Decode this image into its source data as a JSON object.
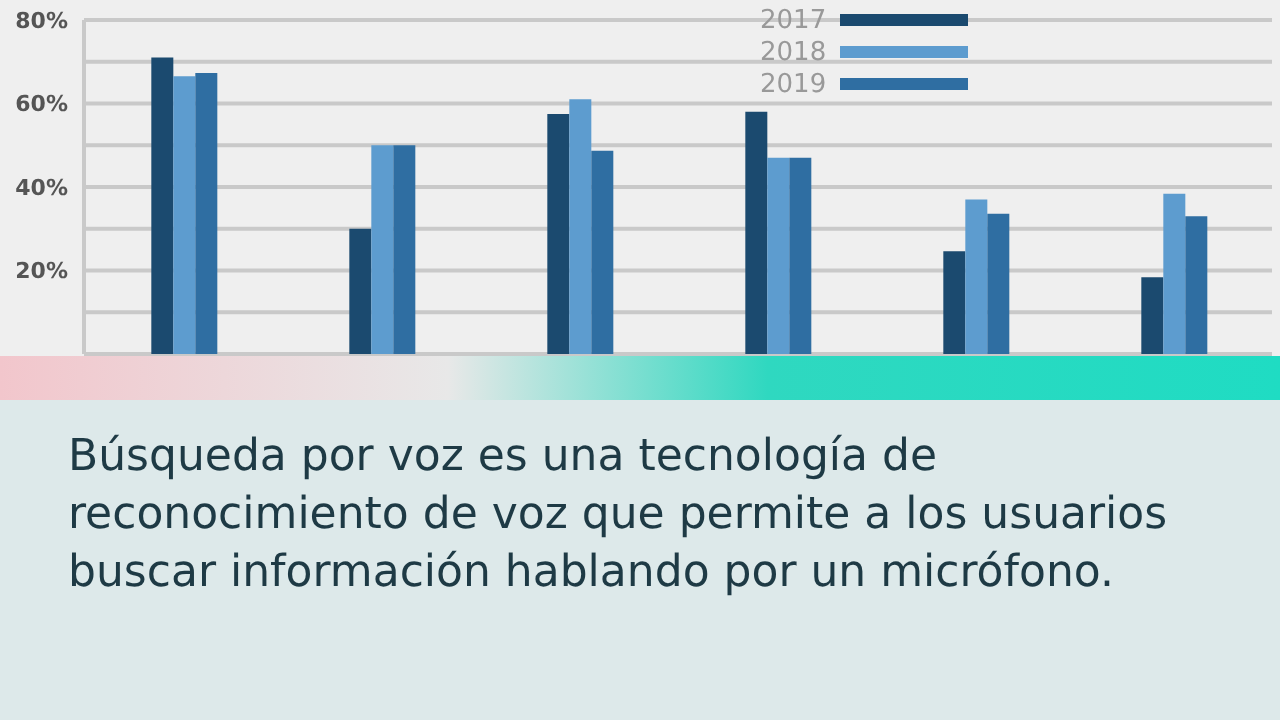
{
  "chart_data": {
    "type": "bar",
    "categories": [
      null,
      null,
      null,
      null,
      null,
      null
    ],
    "series": [
      {
        "name": "2017",
        "color": "#1b4a6f",
        "values": [
          71,
          30,
          57.5,
          58,
          24.6,
          18.4
        ]
      },
      {
        "name": "2018",
        "color": "#5d9ccf",
        "values": [
          66.5,
          50,
          61,
          47,
          37,
          38.4
        ]
      },
      {
        "name": "2019",
        "color": "#2f6ea2",
        "values": [
          67.3,
          50,
          48.7,
          47,
          33.6,
          33
        ]
      }
    ],
    "ylim": [
      0,
      80
    ],
    "yticks": [
      {
        "value": 0,
        "label": null
      },
      {
        "value": 10,
        "label": null
      },
      {
        "value": 20,
        "label": "20%"
      },
      {
        "value": 30,
        "label": null
      },
      {
        "value": 40,
        "label": "40%"
      },
      {
        "value": 50,
        "label": null
      },
      {
        "value": 60,
        "label": "60%"
      },
      {
        "value": 70,
        "label": null
      },
      {
        "value": 80,
        "label": "80%"
      }
    ],
    "grid": "y",
    "legend": "top right",
    "tick_labels": "y",
    "annotations": [
      "Búsqueda por voz es una tecnología de reconocimiento de voz que permite a los usuarios buscar información hablando por un micrófono."
    ]
  }
}
